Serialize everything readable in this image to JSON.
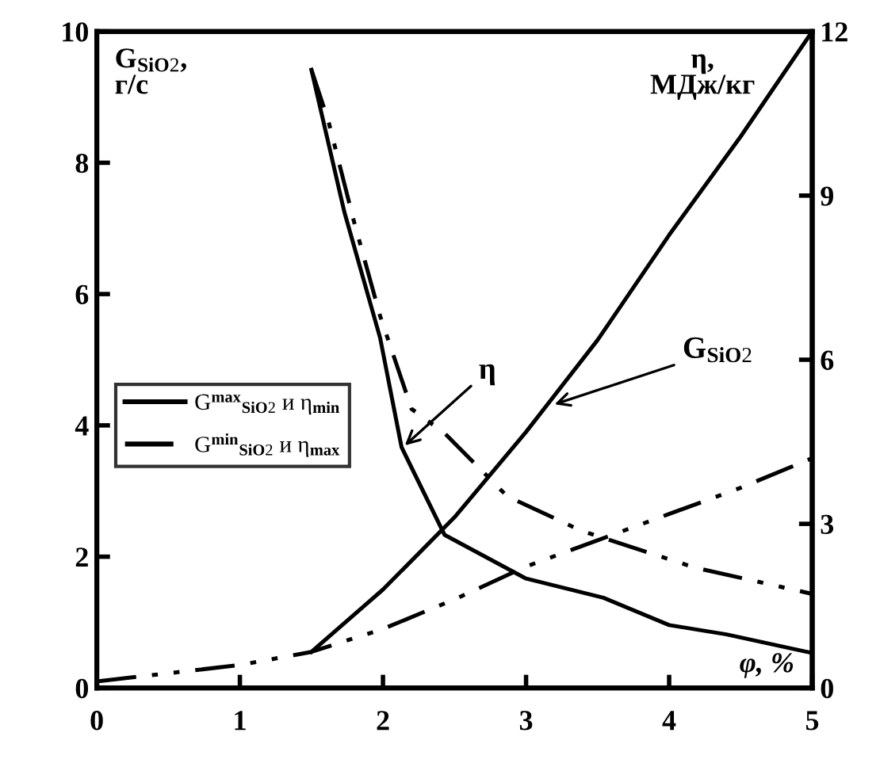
{
  "chart_data": {
    "type": "line",
    "xlabel": "φ, %",
    "ylabel": "G$_{SiO2}$,\nг/с",
    "y2label": "η,\nМДж/кг",
    "xlim": [
      0,
      5
    ],
    "xticks": [
      0,
      1,
      2,
      3,
      4,
      5
    ],
    "ylim": [
      0,
      10
    ],
    "yticks": [
      0,
      2,
      4,
      6,
      8,
      10
    ],
    "y2lim": [
      0,
      12
    ],
    "y2ticks": [
      0,
      3,
      6,
      9,
      12
    ],
    "legend": "left",
    "grid": false,
    "series": [
      {
        "name": "G$^{max}$$_{SiO2}$ и η$_{min}$",
        "color": "#000000",
        "line_style": "solid",
        "x": [
          1.5,
          2.0,
          2.5,
          3.0,
          3.5,
          4.0,
          4.5,
          5.0
        ],
        "values": [
          0.55,
          1.5,
          2.6,
          3.9,
          5.3,
          6.9,
          8.4,
          10
        ]
      },
      {
        "color": "#000000",
        "line_style": "solid",
        "axis": "y2",
        "x": [
          1.5,
          1.73,
          1.98,
          2.13,
          2.43,
          3.0,
          3.54,
          4.0,
          4.4,
          5.0
        ],
        "values": [
          11.3,
          8.7,
          6.4,
          4.4,
          2.8,
          2.0,
          1.65,
          1.15,
          0.98,
          0.64
        ]
      },
      {
        "name": "G$^{min}$$_{SiO2}$ и η$_{max}$",
        "color": "#000000",
        "line_style": "dashed",
        "x": [
          0,
          1.0,
          1.5,
          2.0,
          2.5,
          3.0,
          3.5,
          4.0,
          4.5,
          5.0
        ],
        "values": [
          0.1,
          0.35,
          0.55,
          0.9,
          1.35,
          1.85,
          2.25,
          2.65,
          3.05,
          3.5
        ]
      },
      {
        "color": "#000000",
        "line_style": "dashed",
        "axis": "y2",
        "x": [
          1.5,
          1.62,
          1.8,
          1.98,
          2.2,
          2.43,
          2.87,
          3.39,
          4.18,
          5.0
        ],
        "values": [
          11.3,
          10.35,
          8.5,
          6.8,
          5.1,
          4.66,
          3.5,
          2.87,
          2.2,
          1.72
        ]
      }
    ],
    "annotations": [
      {
        "text": "η",
        "x": 2.13,
        "y": 3.65
      },
      {
        "text": "G$_{SiO2}$",
        "x": 3.17,
        "y": 4.3
      }
    ]
  }
}
